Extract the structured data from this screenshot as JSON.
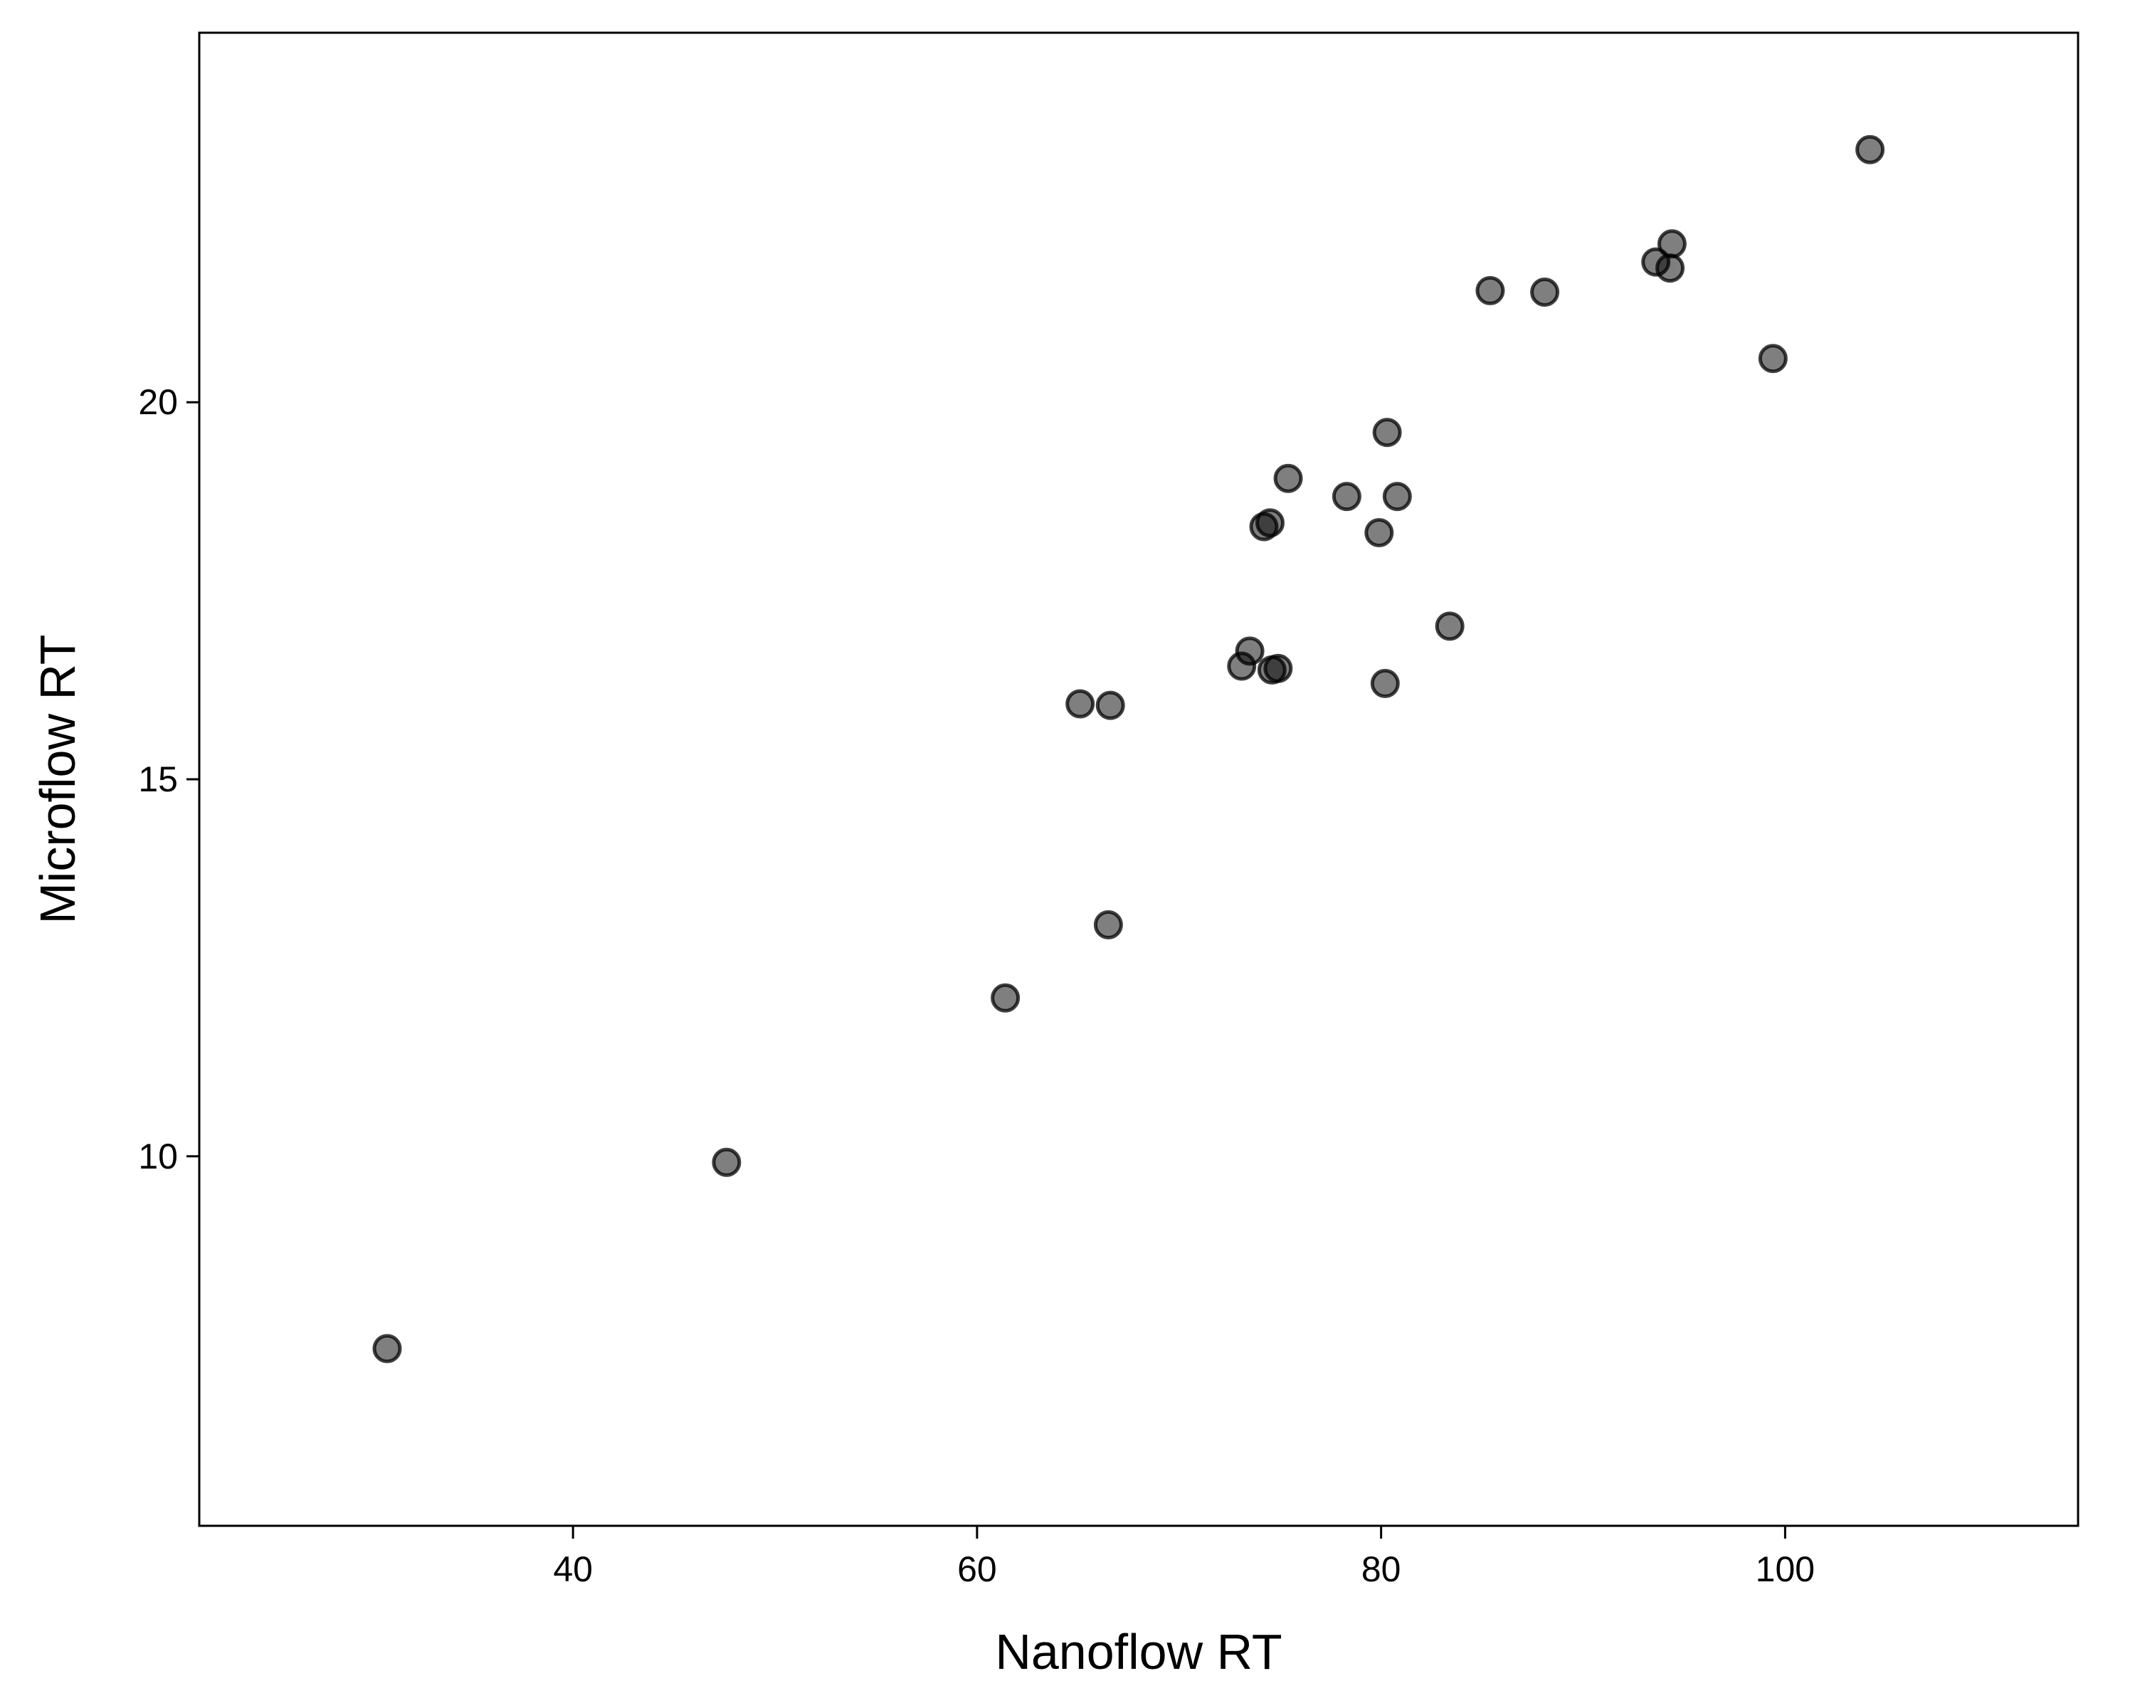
{
  "chart_data": {
    "type": "scatter",
    "xlabel": "Nanoflow RT",
    "ylabel": "Microflow RT",
    "xlim": [
      21.5,
      114.5
    ],
    "ylim": [
      5.1,
      24.9
    ],
    "xticks": [
      40,
      60,
      80,
      100
    ],
    "yticks": [
      10,
      15,
      20
    ],
    "grid": false,
    "legend": "none",
    "colors": {
      "point_fill": "#000000",
      "point_edge": "#000000",
      "axis": "#000000",
      "background": "#ffffff"
    },
    "points": [
      {
        "x": 30.8,
        "y": 7.45
      },
      {
        "x": 47.6,
        "y": 9.92
      },
      {
        "x": 61.4,
        "y": 12.1
      },
      {
        "x": 65.1,
        "y": 16.0
      },
      {
        "x": 66.6,
        "y": 15.98
      },
      {
        "x": 66.5,
        "y": 13.07
      },
      {
        "x": 73.1,
        "y": 16.5
      },
      {
        "x": 73.5,
        "y": 16.7
      },
      {
        "x": 74.6,
        "y": 16.45
      },
      {
        "x": 74.9,
        "y": 16.47
      },
      {
        "x": 74.2,
        "y": 18.35
      },
      {
        "x": 74.5,
        "y": 18.4
      },
      {
        "x": 75.4,
        "y": 18.99
      },
      {
        "x": 78.3,
        "y": 18.75
      },
      {
        "x": 79.9,
        "y": 18.27
      },
      {
        "x": 80.2,
        "y": 16.27
      },
      {
        "x": 80.3,
        "y": 19.6
      },
      {
        "x": 80.8,
        "y": 18.75
      },
      {
        "x": 83.4,
        "y": 17.03
      },
      {
        "x": 85.4,
        "y": 21.48
      },
      {
        "x": 88.1,
        "y": 21.46
      },
      {
        "x": 93.6,
        "y": 21.86
      },
      {
        "x": 94.3,
        "y": 21.78
      },
      {
        "x": 94.4,
        "y": 22.1
      },
      {
        "x": 99.4,
        "y": 20.58
      },
      {
        "x": 104.2,
        "y": 23.35
      }
    ]
  }
}
